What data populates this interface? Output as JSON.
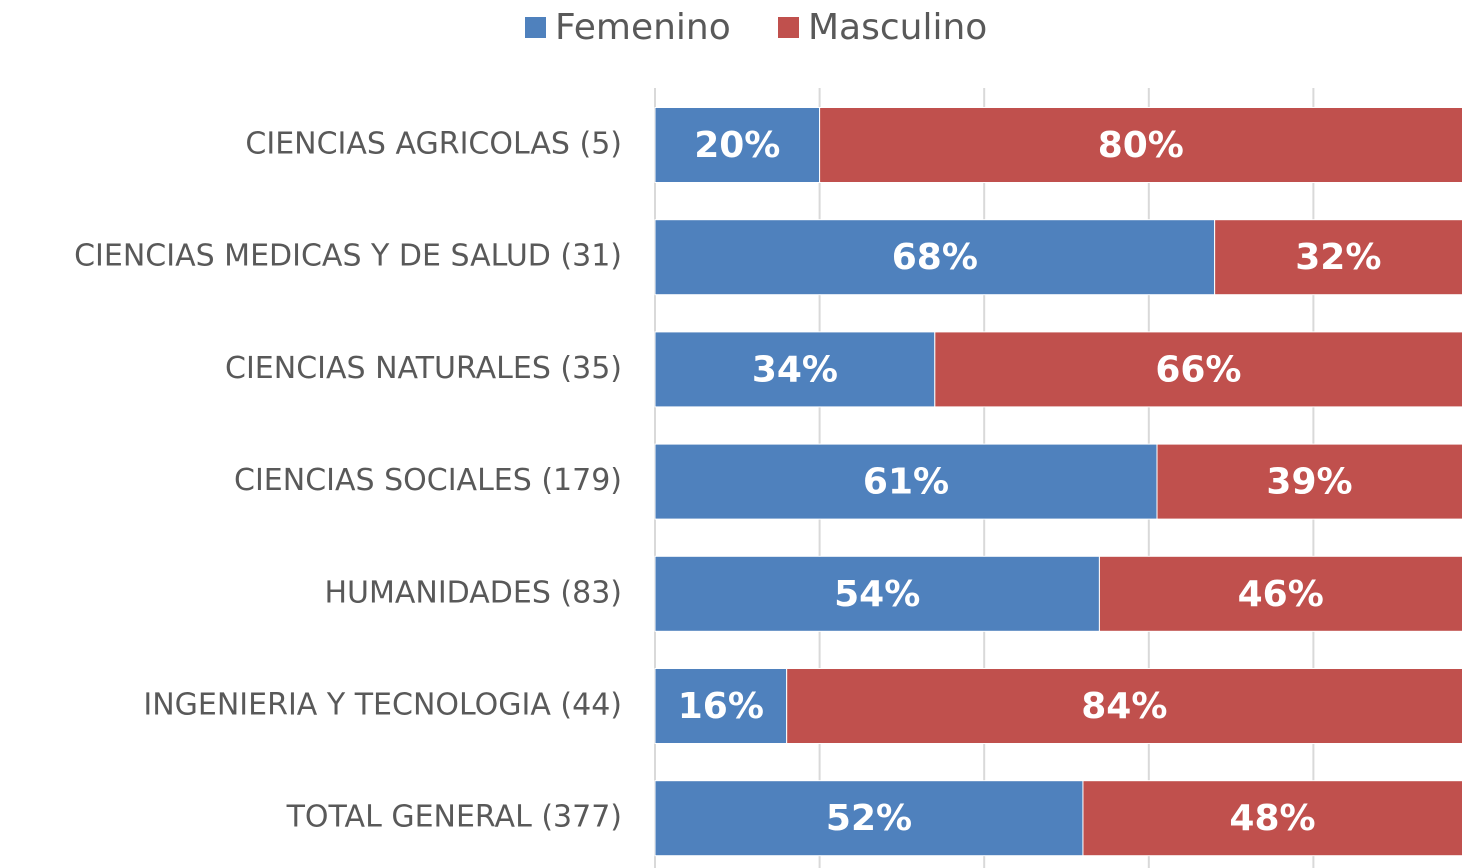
{
  "chart_data": {
    "type": "stacked-bar-horizontal",
    "categories": [
      "CIENCIAS AGRICOLAS (5)",
      "CIENCIAS MEDICAS Y DE SALUD (31)",
      "CIENCIAS NATURALES (35)",
      "CIENCIAS SOCIALES (179)",
      "HUMANIDADES (83)",
      "INGENIERIA Y TECNOLOGIA (44)",
      "TOTAL GENERAL (377)"
    ],
    "series": [
      {
        "name": "Femenino",
        "color": "#4f81bd",
        "values": [
          20,
          68,
          34,
          61,
          54,
          16,
          52
        ],
        "value_labels": [
          "20%",
          "68%",
          "34%",
          "61%",
          "54%",
          "16%",
          "52%"
        ]
      },
      {
        "name": "Masculino",
        "color": "#c0504d",
        "values": [
          80,
          32,
          66,
          39,
          46,
          84,
          48
        ],
        "value_labels": [
          "80%",
          "32%",
          "66%",
          "39%",
          "46%",
          "84%",
          "48%"
        ]
      }
    ],
    "xlim": [
      0,
      100
    ],
    "xticks": [
      0,
      20,
      40,
      60,
      80,
      100
    ],
    "grid": true,
    "legend": "top"
  }
}
